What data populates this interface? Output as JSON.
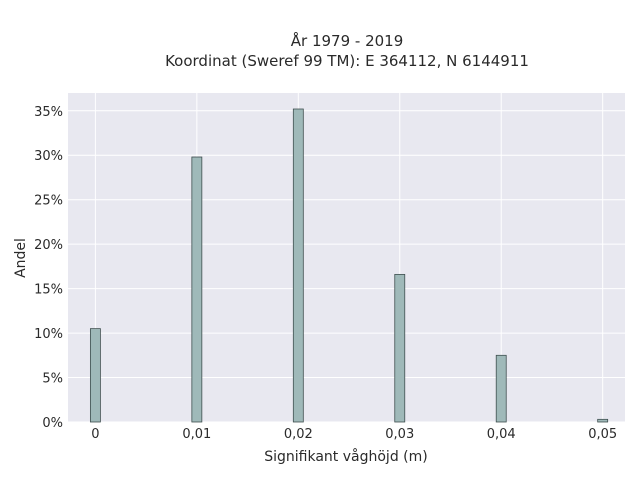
{
  "chart_data": {
    "type": "bar",
    "title": "År 1979 - 2019",
    "subtitle": "Koordinat (Sweref 99 TM): E 364112, N 6144911",
    "xlabel": "Signifikant våghöjd (m)",
    "ylabel": "Andel",
    "x": [
      0,
      0.01,
      0.02,
      0.03,
      0.04,
      0.05
    ],
    "values": [
      10.5,
      29.8,
      35.2,
      16.6,
      7.5,
      0.3
    ],
    "xticks": [
      {
        "value": 0,
        "label": "0"
      },
      {
        "value": 0.01,
        "label": "0,01"
      },
      {
        "value": 0.02,
        "label": "0,02"
      },
      {
        "value": 0.03,
        "label": "0,03"
      },
      {
        "value": 0.04,
        "label": "0,04"
      },
      {
        "value": 0.05,
        "label": "0,05"
      }
    ],
    "yticks": [
      {
        "value": 0,
        "label": "0%"
      },
      {
        "value": 5,
        "label": "5%"
      },
      {
        "value": 10,
        "label": "10%"
      },
      {
        "value": 15,
        "label": "15%"
      },
      {
        "value": 20,
        "label": "20%"
      },
      {
        "value": 25,
        "label": "25%"
      },
      {
        "value": 30,
        "label": "30%"
      },
      {
        "value": 35,
        "label": "35%"
      }
    ],
    "xlim": [
      -0.0027,
      0.0522
    ],
    "ylim": [
      0,
      37
    ],
    "grid": true,
    "colors": {
      "plot_bg": "#e8e8f0",
      "grid": "#ffffff",
      "bar_fill": "#9fb9b9",
      "bar_stroke": "#3f4f4f"
    }
  }
}
